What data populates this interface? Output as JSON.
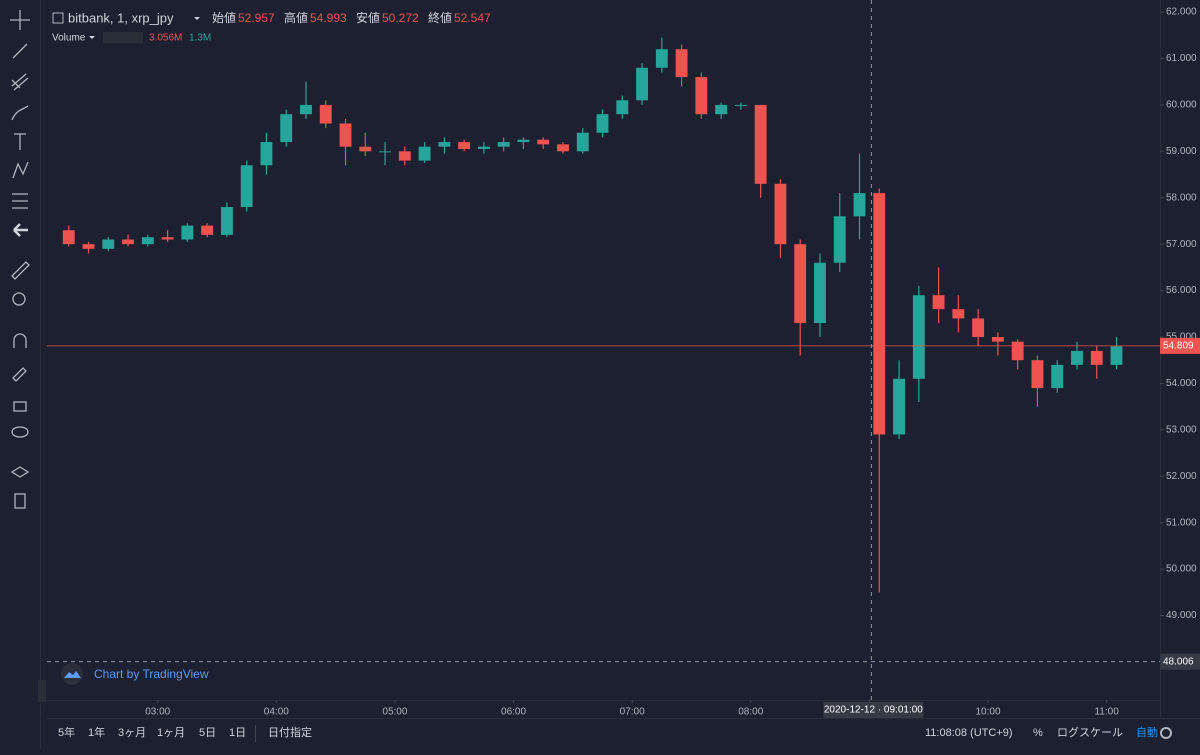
{
  "header": {
    "symbol": "bitbank, 1, xrp_jpy",
    "ohlc": [
      {
        "label": "始値",
        "value": 52.957
      },
      {
        "label": "高値",
        "value": 54.993
      },
      {
        "label": "安値",
        "value": 50.272
      },
      {
        "label": "終値",
        "value": 52.547
      }
    ],
    "volume_label": "Volume",
    "volume_values": [
      "3.056M",
      "1.3M"
    ]
  },
  "watermark": "Chart by TradingView",
  "chart_data": {
    "type": "candlestick",
    "up_color": "#26a69a",
    "down_color": "#ef5350",
    "x": [
      "02:10",
      "02:20",
      "02:30",
      "02:40",
      "02:50",
      "03:00",
      "03:10",
      "03:20",
      "03:30",
      "03:40",
      "03:50",
      "04:00",
      "04:10",
      "04:20",
      "04:30",
      "04:40",
      "04:50",
      "05:00",
      "05:10",
      "05:20",
      "05:30",
      "05:40",
      "05:50",
      "06:00",
      "06:10",
      "06:20",
      "06:30",
      "06:40",
      "06:50",
      "07:00",
      "07:10",
      "07:20",
      "07:30",
      "07:40",
      "07:50",
      "08:00",
      "08:10",
      "08:20",
      "08:30",
      "08:40",
      "08:50",
      "09:00",
      "09:10",
      "09:20",
      "09:30",
      "09:40",
      "09:50",
      "10:00",
      "10:10",
      "10:20",
      "10:30",
      "10:40",
      "10:50",
      "11:00"
    ],
    "open": [
      57.3,
      57.0,
      56.9,
      57.1,
      57.0,
      57.15,
      57.1,
      57.4,
      57.2,
      57.8,
      58.7,
      59.2,
      59.8,
      60.0,
      59.6,
      59.1,
      59.0,
      59.0,
      58.8,
      59.1,
      59.2,
      59.05,
      59.1,
      59.2,
      59.25,
      59.15,
      59.0,
      59.4,
      59.8,
      60.1,
      60.8,
      61.2,
      60.6,
      59.8,
      60.0,
      60.0,
      58.3,
      57.0,
      55.3,
      56.6,
      57.6,
      58.1,
      52.9,
      54.1,
      55.9,
      55.6,
      55.4,
      55.0,
      54.9,
      54.5,
      53.9,
      54.4,
      54.7,
      54.4
    ],
    "high": [
      57.4,
      57.05,
      57.15,
      57.2,
      57.2,
      57.3,
      57.45,
      57.45,
      57.9,
      58.8,
      59.4,
      59.9,
      60.5,
      60.1,
      59.7,
      59.4,
      59.2,
      59.1,
      59.2,
      59.3,
      59.25,
      59.2,
      59.3,
      59.3,
      59.3,
      59.2,
      59.5,
      59.9,
      60.2,
      60.9,
      61.45,
      61.3,
      60.7,
      60.05,
      60.05,
      60.0,
      58.4,
      57.1,
      56.8,
      58.1,
      58.95,
      58.2,
      54.5,
      56.1,
      56.5,
      55.9,
      55.6,
      55.1,
      54.95,
      54.6,
      54.5,
      54.9,
      54.8,
      55.0
    ],
    "low": [
      56.95,
      56.8,
      56.85,
      56.95,
      56.95,
      57.05,
      57.05,
      57.15,
      57.15,
      57.7,
      58.5,
      59.1,
      59.7,
      59.5,
      58.7,
      58.9,
      58.7,
      58.7,
      58.75,
      58.95,
      59.0,
      58.95,
      59.0,
      59.05,
      59.05,
      58.95,
      58.95,
      59.3,
      59.7,
      60.0,
      60.7,
      60.4,
      59.7,
      59.7,
      59.9,
      58.0,
      56.7,
      54.6,
      55.0,
      56.4,
      57.1,
      49.5,
      52.8,
      53.6,
      55.3,
      55.1,
      54.8,
      54.6,
      54.3,
      53.5,
      53.8,
      54.3,
      54.1,
      54.3
    ],
    "close": [
      57.0,
      56.9,
      57.1,
      57.0,
      57.15,
      57.1,
      57.4,
      57.2,
      57.8,
      58.7,
      59.2,
      59.8,
      60.0,
      59.6,
      59.1,
      59.0,
      59.0,
      58.8,
      59.1,
      59.2,
      59.05,
      59.1,
      59.2,
      59.25,
      59.15,
      59.0,
      59.4,
      59.8,
      60.1,
      60.8,
      61.2,
      60.6,
      59.8,
      60.0,
      60.0,
      58.3,
      57.0,
      55.3,
      56.6,
      57.6,
      58.1,
      52.9,
      54.1,
      55.9,
      55.6,
      55.4,
      55.0,
      54.9,
      54.5,
      53.9,
      54.4,
      54.7,
      54.4,
      54.8
    ],
    "xlim": [
      "02:04",
      "11:27"
    ],
    "xticks": [
      "03:00",
      "04:00",
      "05:00",
      "06:00",
      "07:00",
      "08:00",
      "09:00",
      "10:00",
      "11:00"
    ],
    "ylim": [
      47.18,
      62.26
    ],
    "yticks": [
      {
        "value": 62,
        "label": "62.000"
      },
      {
        "value": 61,
        "label": "61.000"
      },
      {
        "value": 60,
        "label": "60.000"
      },
      {
        "value": 59,
        "label": "59.000"
      },
      {
        "value": 58,
        "label": "58.000"
      },
      {
        "value": 57,
        "label": "57.000"
      },
      {
        "value": 56,
        "label": "56.000"
      },
      {
        "value": 55,
        "label": "55.000"
      },
      {
        "value": 54,
        "label": "54.000"
      },
      {
        "value": 53,
        "label": "53.000"
      },
      {
        "value": 52,
        "label": "52.000"
      },
      {
        "value": 51,
        "label": "51.000"
      },
      {
        "value": 50,
        "label": "50.000"
      },
      {
        "value": 49,
        "label": "49.000"
      },
      {
        "value": 48,
        "label": "48.000"
      }
    ],
    "last_price": 54.809,
    "crosshair_price": 48.006,
    "crosshair_time": "2020-12-12 · 09:01:00"
  },
  "footer": {
    "ranges": [
      "5年",
      "1年",
      "3ヶ月",
      "1ヶ月",
      "5日",
      "1日"
    ],
    "date_button": "日付指定",
    "clock": "11:08:08 (UTC+9)",
    "percent": "%",
    "log": "ログスケール",
    "auto": "自動"
  }
}
